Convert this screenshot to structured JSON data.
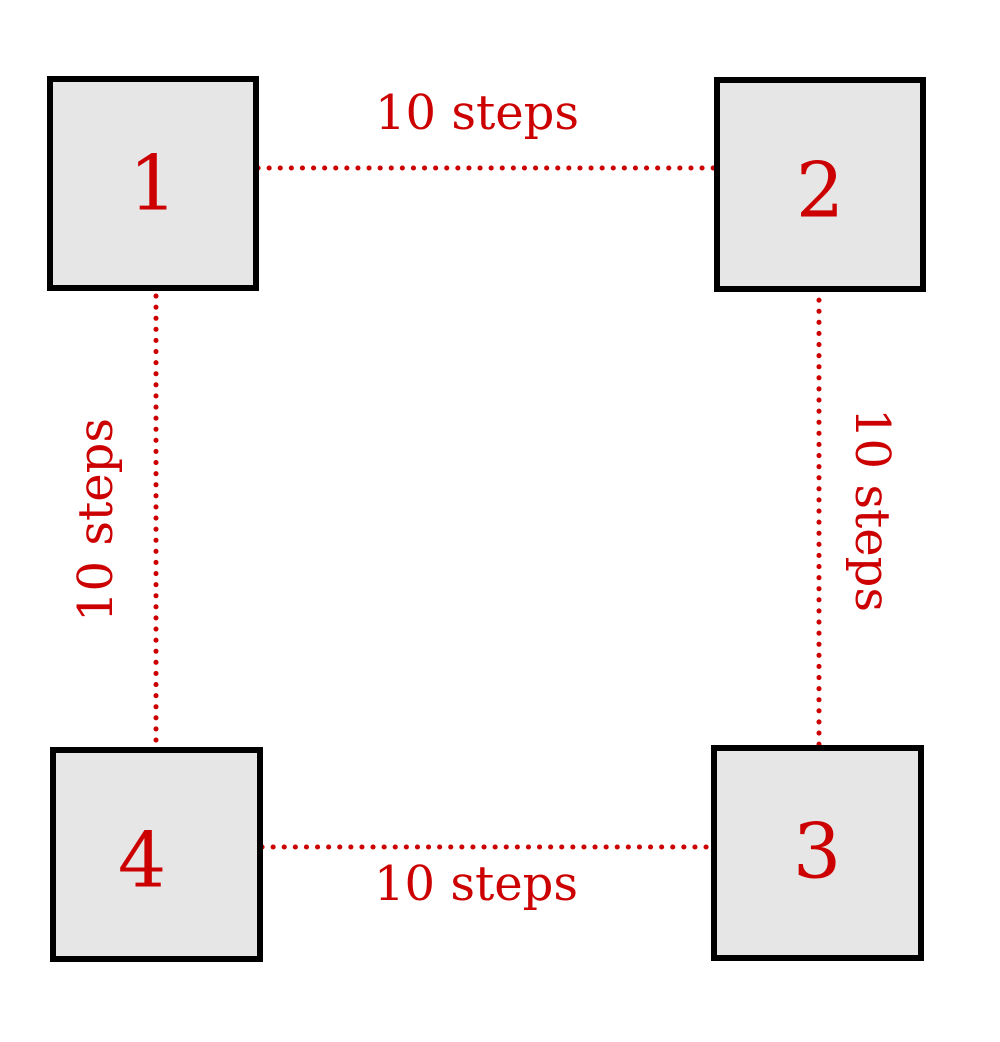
{
  "colors": {
    "accent": "#cc0000",
    "box_fill": "#e6e6e6",
    "box_stroke": "#000000"
  },
  "nodes": [
    {
      "label": "1"
    },
    {
      "label": "2"
    },
    {
      "label": "3"
    },
    {
      "label": "4"
    }
  ],
  "edges": [
    {
      "from": "1",
      "to": "2",
      "label": "10 steps"
    },
    {
      "from": "2",
      "to": "3",
      "label": "10 steps"
    },
    {
      "from": "4",
      "to": "3",
      "label": "10 steps"
    },
    {
      "from": "1",
      "to": "4",
      "label": "10 steps"
    }
  ]
}
